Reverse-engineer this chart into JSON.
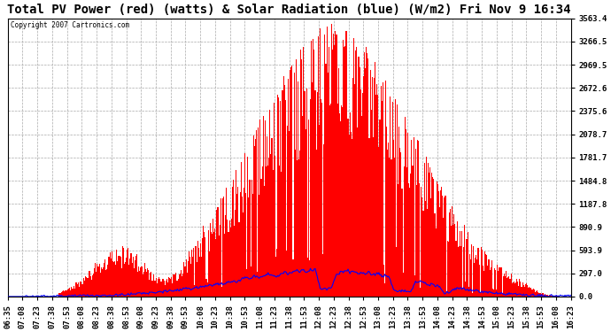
{
  "title": "Total PV Power (red) (watts) & Solar Radiation (blue) (W/m2) Fri Nov 9 16:34",
  "copyright_text": "Copyright 2007 Cartronics.com",
  "bg_color": "#ffffff",
  "plot_bg_color": "#ffffff",
  "grid_color": "#aaaaaa",
  "y_ticks": [
    0.0,
    297.0,
    593.9,
    890.9,
    1187.8,
    1484.8,
    1781.7,
    2078.7,
    2375.6,
    2672.6,
    2969.5,
    3266.5,
    3563.4
  ],
  "y_max": 3563.4,
  "x_labels": [
    "06:35",
    "07:08",
    "07:23",
    "07:38",
    "07:53",
    "08:08",
    "08:23",
    "08:38",
    "08:53",
    "09:08",
    "09:23",
    "09:38",
    "09:53",
    "10:08",
    "10:23",
    "10:38",
    "10:53",
    "11:08",
    "11:23",
    "11:38",
    "11:53",
    "12:08",
    "12:23",
    "12:38",
    "12:53",
    "13:08",
    "13:23",
    "13:38",
    "13:53",
    "14:08",
    "14:23",
    "14:38",
    "14:53",
    "15:08",
    "15:23",
    "15:38",
    "15:53",
    "16:08",
    "16:23"
  ],
  "red_color": "#ff0000",
  "blue_color": "#0000ff",
  "title_fontsize": 10,
  "tick_fontsize": 6.5
}
